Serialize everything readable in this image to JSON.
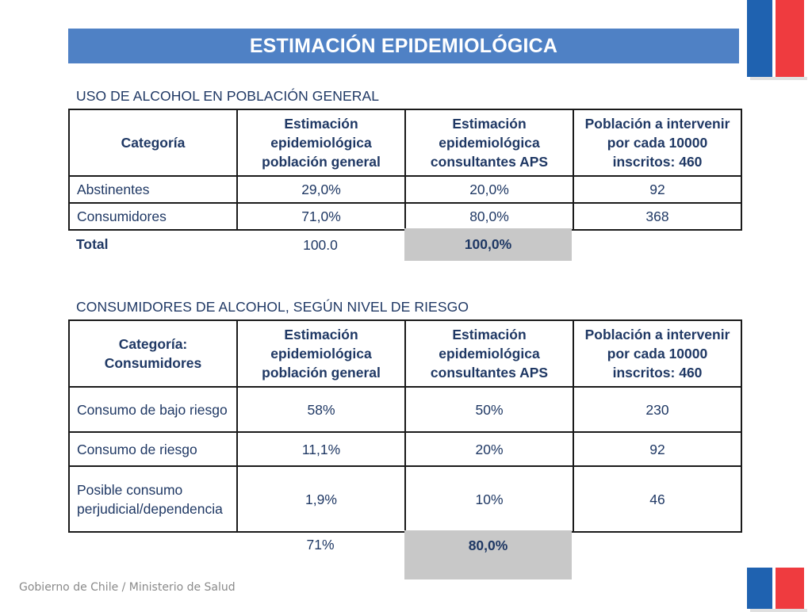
{
  "title": "ESTIMACIÓN EPIDEMIOLÓGICA",
  "section1": {
    "heading": "USO DE ALCOHOL EN POBLACIÓN GENERAL",
    "headers": [
      "Categoría",
      "Estimación epidemiológica población general",
      "Estimación epidemiológica consultantes APS",
      "Población a intervenir por cada 10000 inscritos: 460"
    ],
    "rows": [
      [
        "Abstinentes",
        "29,0%",
        "20,0%",
        "92"
      ],
      [
        "Consumidores",
        "71,0%",
        "80,0%",
        "368"
      ]
    ],
    "total_label": "Total",
    "total_general": "100.0",
    "total_aps": "100,0%"
  },
  "section2": {
    "heading": "CONSUMIDORES DE ALCOHOL, SEGÚN NIVEL DE RIESGO",
    "headers": [
      "Categoría: Consumidores",
      "Estimación epidemiológica población general",
      "Estimación epidemiológica consultantes APS",
      "Población a intervenir por cada 10000 inscritos: 460"
    ],
    "rows": [
      [
        "Consumo de bajo riesgo",
        "58%",
        "50%",
        "230"
      ],
      [
        "Consumo de riesgo",
        "11,1%",
        "20%",
        "92"
      ],
      [
        "Posible consumo perjudicial/dependencia",
        "1,9%",
        "10%",
        "46"
      ]
    ],
    "total_general": "71%",
    "total_aps": "80,0%"
  },
  "footer": "Gobierno de Chile / Ministerio de Salud",
  "colors": {
    "title_bar": "#4f81c5",
    "text": "#1f3864",
    "total_cell": "#c8c8c8",
    "flag_blue": "#1f62b0",
    "flag_red": "#ef3b3f"
  }
}
